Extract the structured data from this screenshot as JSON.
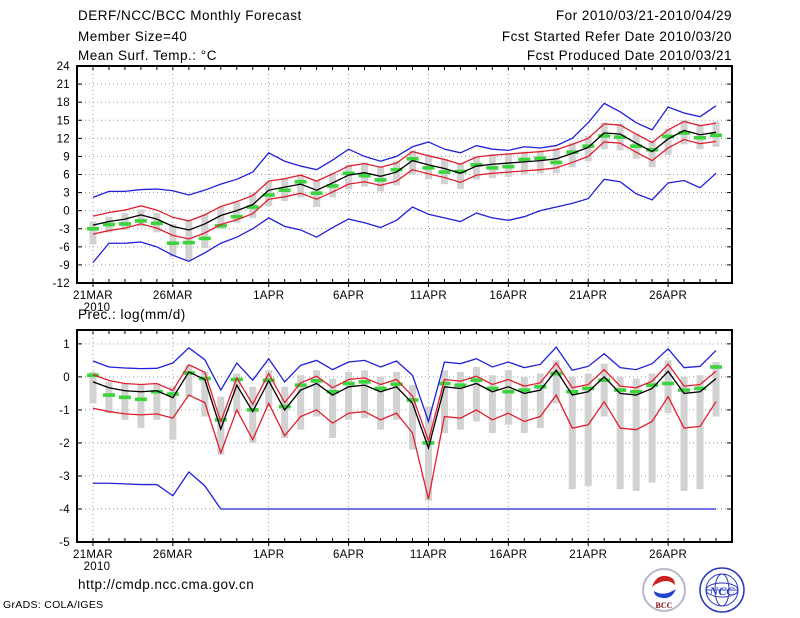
{
  "header": {
    "title": "DERF/NCC/BCC Monthly Forecast",
    "member_size": "Member Size=40",
    "temp_label": "Mean Surf. Temp.: °C",
    "for_range": "For 2010/03/21-2010/04/29",
    "refer_date": "Fcst Started Refer Date 2010/03/20",
    "produced_date": "Fcst Produced Date 2010/03/21"
  },
  "footer": {
    "url": "http://cmdp.ncc.cma.gov.cn",
    "credit": "GrADS: COLA/IGES",
    "logos": [
      {
        "label": "BCC"
      },
      {
        "label": "NCC"
      }
    ]
  },
  "colors": {
    "blue_line": "#2020d8",
    "red_line": "#e02030",
    "black_line": "#000000",
    "green_dash": "#3cd43c",
    "gray_bar": "#d2d2d2",
    "grid": "#9a9a9a"
  },
  "chart_data": [
    {
      "type": "line",
      "title": "Mean Surf. Temp.: °C",
      "ylim": [
        -12,
        24
      ],
      "yticks": [
        "24",
        "21",
        "18",
        "15",
        "12",
        "9",
        "6",
        "3",
        "0",
        "-3",
        "-6",
        "-9",
        "-12"
      ],
      "xticks": [
        {
          "day": 0,
          "label": "21MAR",
          "year": "2010"
        },
        {
          "day": 5,
          "label": "26MAR"
        },
        {
          "day": 11,
          "label": "1APR"
        },
        {
          "day": 16,
          "label": "6APR"
        },
        {
          "day": 21,
          "label": "11APR"
        },
        {
          "day": 26,
          "label": "16APR"
        },
        {
          "day": 31,
          "label": "21APR"
        },
        {
          "day": 36,
          "label": "26APR"
        }
      ],
      "grid": true,
      "legend": "none",
      "series": [
        {
          "name": "ensemble-max-blue",
          "color": "blue",
          "values": [
            2.2,
            3.2,
            3.2,
            3.5,
            3.6,
            3.3,
            2.6,
            3.4,
            4.4,
            5.2,
            6.4,
            9.6,
            8.2,
            7.4,
            6.8,
            8.4,
            10.2,
            9.0,
            8.2,
            9.0,
            10.6,
            11.4,
            10.2,
            9.6,
            10.8,
            10.2,
            10.0,
            10.6,
            10.4,
            10.8,
            12.0,
            14.6,
            17.8,
            16.4,
            14.6,
            13.4,
            17.2,
            16.2,
            15.6,
            17.4
          ]
        },
        {
          "name": "ensemble-min-blue",
          "color": "blue",
          "values": [
            -8.6,
            -5.4,
            -5.4,
            -5.2,
            -6.0,
            -7.4,
            -8.4,
            -7.0,
            -5.4,
            -4.4,
            -3.0,
            -1.2,
            -2.6,
            -3.2,
            -4.4,
            -2.8,
            -1.4,
            -2.0,
            -2.8,
            -1.6,
            0.6,
            -0.6,
            -1.2,
            -1.8,
            -0.4,
            -1.2,
            -1.6,
            -1.0,
            0.0,
            0.6,
            1.2,
            2.0,
            5.2,
            4.8,
            2.8,
            1.8,
            4.6,
            5.0,
            3.8,
            6.2
          ]
        },
        {
          "name": "upper-spread-red",
          "color": "red",
          "values": [
            -0.9,
            -0.3,
            0.1,
            0.8,
            0.1,
            -1.1,
            -1.7,
            -0.7,
            0.7,
            1.5,
            2.5,
            4.9,
            5.3,
            5.9,
            4.9,
            6.1,
            7.4,
            7.8,
            7.2,
            7.9,
            9.8,
            9.1,
            8.5,
            7.7,
            8.9,
            9.2,
            9.4,
            9.6,
            9.8,
            10.1,
            11.0,
            12.0,
            14.4,
            14.2,
            12.7,
            11.3,
            13.4,
            14.8,
            14.1,
            14.5
          ]
        },
        {
          "name": "lower-spread-red",
          "color": "red",
          "values": [
            -3.9,
            -3.3,
            -2.9,
            -2.2,
            -2.9,
            -4.1,
            -4.7,
            -3.7,
            -2.3,
            -1.5,
            -0.5,
            1.9,
            2.3,
            2.9,
            1.9,
            3.1,
            4.4,
            4.8,
            4.2,
            4.9,
            6.8,
            6.1,
            5.5,
            4.7,
            5.9,
            6.2,
            6.4,
            6.6,
            6.8,
            7.1,
            8.0,
            9.0,
            11.4,
            11.2,
            9.7,
            8.3,
            10.4,
            11.8,
            11.1,
            11.5
          ]
        },
        {
          "name": "ensemble-mean-black",
          "color": "black",
          "values": [
            -2.4,
            -1.8,
            -1.4,
            -0.7,
            -1.4,
            -2.6,
            -3.2,
            -2.2,
            -0.8,
            0.0,
            1.0,
            3.4,
            3.9,
            4.4,
            3.4,
            4.6,
            5.9,
            6.3,
            5.7,
            6.4,
            8.3,
            7.6,
            7.0,
            6.2,
            7.4,
            7.7,
            7.9,
            8.1,
            8.3,
            8.6,
            9.5,
            10.5,
            12.9,
            12.7,
            11.2,
            9.8,
            11.9,
            13.3,
            12.6,
            13.0
          ]
        }
      ],
      "green_dash": {
        "name": "observation-climatology-green",
        "values": [
          -3.0,
          -2.3,
          -2.2,
          -1.7,
          -2.1,
          -5.4,
          -5.3,
          -4.6,
          -2.5,
          -1.0,
          0.6,
          2.6,
          3.4,
          4.8,
          2.9,
          4.1,
          6.2,
          5.8,
          5.1,
          6.8,
          8.6,
          7.1,
          6.4,
          6.5,
          7.6,
          7.1,
          7.3,
          8.5,
          8.7,
          8.0,
          9.7,
          10.7,
          12.4,
          12.2,
          10.7,
          10.1,
          12.3,
          12.9,
          12.1,
          12.5
        ]
      },
      "gray_bars": {
        "name": "ensemble-spread-bar",
        "lo": [
          -5.6,
          -3.6,
          -3.2,
          -2.6,
          -3.6,
          -7.6,
          -8.2,
          -6.2,
          -3.0,
          -2.0,
          -1.2,
          0.8,
          1.6,
          2.2,
          0.6,
          2.2,
          3.6,
          4.0,
          3.2,
          4.2,
          6.0,
          5.2,
          4.4,
          3.6,
          5.2,
          5.4,
          5.6,
          6.0,
          6.2,
          6.2,
          7.2,
          8.2,
          10.2,
          10.0,
          8.6,
          7.2,
          9.2,
          11.0,
          10.2,
          10.6
        ],
        "hi": [
          -1.8,
          -1.0,
          -0.4,
          0.2,
          -0.4,
          -2.2,
          -1.6,
          -0.6,
          0.6,
          1.4,
          3.0,
          4.8,
          5.4,
          6.0,
          5.0,
          6.2,
          7.6,
          8.0,
          7.4,
          8.2,
          10.0,
          9.2,
          8.6,
          7.8,
          9.0,
          9.4,
          9.6,
          9.8,
          10.0,
          10.4,
          11.2,
          12.4,
          14.6,
          14.4,
          12.8,
          11.6,
          13.6,
          15.0,
          14.2,
          14.8
        ]
      }
    },
    {
      "type": "line",
      "title": "Prec.: log(mm/d)",
      "ylim": [
        -5,
        1.42
      ],
      "yticks": [
        "1",
        "0",
        "-1",
        "-2",
        "-3",
        "-4",
        "-5"
      ],
      "xticks": [
        {
          "day": 0,
          "label": "21MAR",
          "year": "2010"
        },
        {
          "day": 5,
          "label": "26MAR"
        },
        {
          "day": 11,
          "label": "1APR"
        },
        {
          "day": 16,
          "label": "6APR"
        },
        {
          "day": 21,
          "label": "11APR"
        },
        {
          "day": 26,
          "label": "16APR"
        },
        {
          "day": 31,
          "label": "21APR"
        },
        {
          "day": 36,
          "label": "26APR"
        }
      ],
      "grid": true,
      "legend": "none",
      "series": [
        {
          "name": "ensemble-max-blue",
          "color": "blue",
          "values": [
            0.48,
            0.3,
            0.27,
            0.25,
            0.26,
            0.42,
            0.88,
            0.52,
            -0.4,
            0.42,
            -0.1,
            0.55,
            -0.15,
            0.35,
            0.5,
            0.22,
            0.45,
            0.5,
            0.3,
            0.48,
            0.05,
            -1.35,
            0.45,
            0.4,
            0.55,
            0.3,
            0.45,
            0.28,
            0.38,
            0.9,
            0.2,
            0.32,
            0.7,
            0.28,
            0.22,
            0.4,
            0.85,
            0.28,
            0.32,
            0.8
          ]
        },
        {
          "name": "ensemble-min-blue",
          "color": "blue",
          "values": [
            -3.22,
            -3.22,
            -3.24,
            -3.26,
            -3.26,
            -3.6,
            -2.88,
            -3.3,
            -4.0,
            -4.0,
            -4.0,
            -4.0,
            -4.0,
            -4.0,
            -4.0,
            -4.0,
            -4.0,
            -4.0,
            -4.0,
            -4.0,
            -4.0,
            -4.0,
            -4.0,
            -4.0,
            -4.0,
            -4.0,
            -4.0,
            -4.0,
            -4.0,
            -4.0,
            -4.0,
            -4.0,
            -4.0,
            -4.0,
            -4.0,
            -4.0,
            -4.0,
            -4.0,
            -4.0,
            -4.0
          ]
        },
        {
          "name": "upper-spread-red",
          "color": "red",
          "values": [
            0.07,
            -0.11,
            -0.2,
            -0.23,
            -0.2,
            -0.41,
            0.37,
            0.14,
            -1.36,
            -0.03,
            -0.83,
            0.1,
            -0.78,
            -0.18,
            0.02,
            -0.33,
            -0.08,
            -0.03,
            -0.23,
            -0.08,
            -0.58,
            -1.93,
            -0.08,
            -0.13,
            0.02,
            -0.23,
            -0.08,
            -0.28,
            -0.18,
            0.42,
            -0.33,
            -0.23,
            0.22,
            -0.28,
            -0.33,
            -0.13,
            0.39,
            -0.28,
            -0.23,
            0.17
          ]
        },
        {
          "name": "lower-spread-red",
          "color": "red",
          "values": [
            -0.95,
            -1.05,
            -1.12,
            -1.15,
            -1.12,
            -1.25,
            -0.55,
            -0.78,
            -2.3,
            -1.0,
            -1.9,
            -0.8,
            -1.78,
            -1.2,
            -1.0,
            -1.4,
            -1.1,
            -1.05,
            -1.3,
            -1.1,
            -1.7,
            -3.7,
            -1.2,
            -1.25,
            -1.0,
            -1.3,
            -1.1,
            -1.35,
            -1.2,
            -0.55,
            -1.55,
            -1.45,
            -0.75,
            -1.55,
            -1.6,
            -1.35,
            -0.6,
            -1.55,
            -1.5,
            -0.75
          ]
        },
        {
          "name": "ensemble-mean-black",
          "color": "black",
          "values": [
            -0.15,
            -0.33,
            -0.42,
            -0.45,
            -0.42,
            -0.63,
            0.15,
            -0.08,
            -1.58,
            -0.25,
            -1.05,
            -0.12,
            -1.0,
            -0.4,
            -0.2,
            -0.55,
            -0.3,
            -0.25,
            -0.45,
            -0.3,
            -0.8,
            -2.15,
            -0.3,
            -0.35,
            -0.2,
            -0.45,
            -0.3,
            -0.5,
            -0.4,
            0.2,
            -0.55,
            -0.45,
            0.0,
            -0.5,
            -0.55,
            -0.35,
            0.17,
            -0.5,
            -0.45,
            -0.05
          ]
        }
      ],
      "green_dash": {
        "name": "observation-climatology-green",
        "values": [
          0.05,
          -0.55,
          -0.62,
          -0.68,
          -0.45,
          -0.52,
          0.12,
          -0.05,
          -1.3,
          -0.08,
          -1.0,
          -0.1,
          -0.9,
          -0.25,
          -0.12,
          -0.45,
          -0.2,
          -0.15,
          -0.35,
          -0.22,
          -0.7,
          -2.0,
          -0.2,
          -0.25,
          -0.1,
          -0.35,
          -0.45,
          -0.4,
          -0.3,
          0.1,
          -0.45,
          -0.35,
          -0.1,
          -0.4,
          -0.45,
          -0.25,
          -0.2,
          -0.4,
          -0.35,
          0.3
        ]
      },
      "gray_bars": {
        "name": "ensemble-spread-bar",
        "lo": [
          -0.8,
          -1.1,
          -1.3,
          -1.55,
          -1.3,
          -1.9,
          -0.6,
          -1.2,
          -2.35,
          -1.1,
          -2.0,
          -0.9,
          -1.85,
          -1.6,
          -1.2,
          -1.85,
          -1.3,
          -1.25,
          -1.6,
          -1.3,
          -2.2,
          -3.75,
          -1.7,
          -1.6,
          -1.35,
          -1.7,
          -1.45,
          -1.7,
          -1.55,
          -0.8,
          -3.4,
          -3.3,
          -1.2,
          -3.4,
          -3.45,
          -3.2,
          -1.1,
          -3.45,
          -3.4,
          -1.2
        ],
        "hi": [
          0.15,
          -0.15,
          -0.2,
          -0.25,
          -0.2,
          -0.3,
          0.35,
          0.15,
          -0.6,
          0.1,
          -0.3,
          0.2,
          -0.3,
          0.05,
          0.2,
          -0.05,
          0.15,
          0.2,
          0.0,
          0.15,
          -0.25,
          -0.9,
          0.2,
          0.15,
          0.3,
          0.05,
          0.2,
          0.0,
          0.1,
          0.5,
          0.0,
          0.1,
          0.4,
          0.0,
          -0.05,
          0.1,
          0.5,
          0.0,
          0.05,
          0.45
        ]
      }
    }
  ]
}
